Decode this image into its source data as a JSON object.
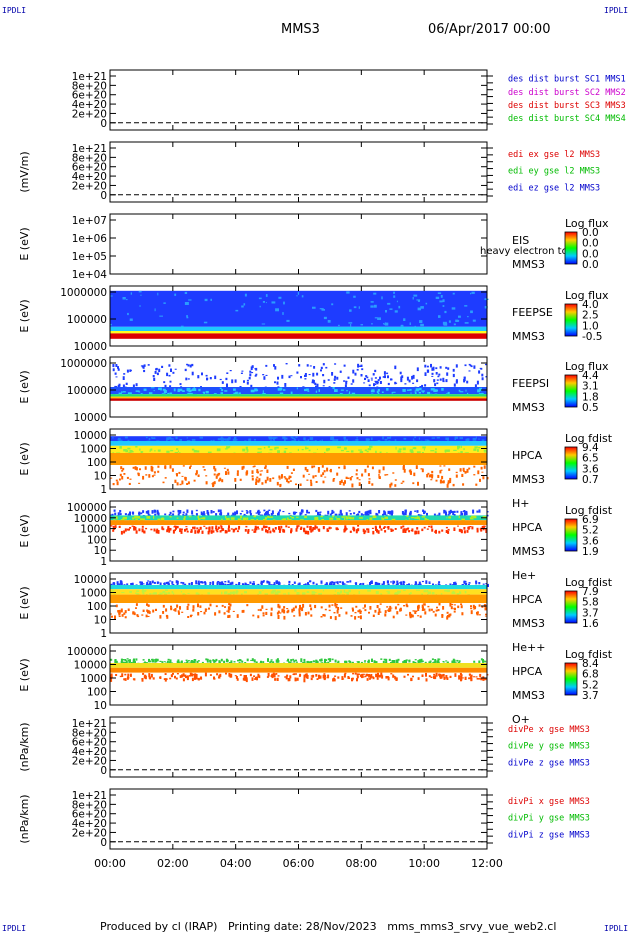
{
  "corner_label": "IPDLI",
  "header": {
    "title": "MMS3",
    "datetime": "06/Apr/2017 00:00"
  },
  "footer": {
    "produced_by": "Produced by cl (IRAP)",
    "printing_date": "Printing date: 28/Nov/2023",
    "filename": "mms_mms3_srvy_vue_web2.cl"
  },
  "chart_data": {
    "type": "heatmap",
    "x_ticks": [
      "00:00",
      "02:00",
      "04:00",
      "06:00",
      "08:00",
      "10:00",
      "12:00"
    ],
    "x_range_hours": [
      0,
      12
    ],
    "panels": [
      {
        "id": "des-dist",
        "kind": "line",
        "ylabel": "",
        "yticks": [
          "1e+21",
          "8e+20",
          "6e+20",
          "4e+20",
          "2e+20",
          "0"
        ],
        "dashed_zero": true,
        "legend": [
          {
            "text": "des dist burst SC1 MMS1",
            "color": "#0000cc"
          },
          {
            "text": "des dist burst SC2 MMS2",
            "color": "#cc00cc"
          },
          {
            "text": "des dist burst SC3 MMS3",
            "color": "#dd0000"
          },
          {
            "text": "des dist burst SC4 MMS4",
            "color": "#00bb00"
          }
        ]
      },
      {
        "id": "edi-e",
        "kind": "line",
        "ylabel": "(mV/m)",
        "yticks": [
          "1e+21",
          "8e+20",
          "6e+20",
          "4e+20",
          "2e+20",
          "0"
        ],
        "dashed_zero": true,
        "legend": [
          {
            "text": "edi ex gse l2 MMS3",
            "color": "#dd0000"
          },
          {
            "text": "edi ey gse l2 MMS3",
            "color": "#00bb00"
          },
          {
            "text": "edi ez gse l2 MMS3",
            "color": "#0000cc"
          }
        ]
      },
      {
        "id": "eis",
        "kind": "empty-spectrogram",
        "ylabel": "E (eV)",
        "yticks": [
          "1e+07",
          "1e+06",
          "1e+05",
          "1e+04"
        ],
        "instrument": [
          "EIS",
          "MMS3"
        ],
        "overlay_text": "heavy electron to",
        "colorbar": {
          "title": "Log flux",
          "labels": [
            "0.0",
            "0.0",
            "0.0",
            "0.0"
          ]
        }
      },
      {
        "id": "feeps-e",
        "kind": "spectrogram",
        "ylabel": "E (eV)",
        "yticks": [
          "1000000",
          "100000",
          "10000"
        ],
        "instrument": [
          "FEEPSE",
          "MMS3"
        ],
        "colorbar": {
          "title": "Log flux",
          "labels": [
            "4.0",
            "2.5",
            "1.0",
            "-0.5"
          ]
        },
        "bands": [
          {
            "from": 0.08,
            "to": 0.68,
            "color": "#1e3cff",
            "noise": "#2a9cff"
          },
          {
            "from": 0.68,
            "to": 0.75,
            "color": "#1ec8ff",
            "noise": null
          },
          {
            "from": 0.75,
            "to": 0.79,
            "color": "#ffff20",
            "noise": null
          },
          {
            "from": 0.79,
            "to": 0.88,
            "color": "#dd0000",
            "noise": null
          }
        ]
      },
      {
        "id": "feeps-i",
        "kind": "spectrogram",
        "ylabel": "E (eV)",
        "yticks": [
          "1000000",
          "100000",
          "10000"
        ],
        "instrument": [
          "FEEPSI",
          "MMS3"
        ],
        "colorbar": {
          "title": "Log flux",
          "labels": [
            "4.4",
            "3.1",
            "1.8",
            "0.5"
          ]
        },
        "bands": [
          {
            "from": 0.1,
            "to": 0.5,
            "color": "#1e3cff",
            "sparse": true
          },
          {
            "from": 0.5,
            "to": 0.62,
            "color": "#1e50ff",
            "noise": "#28c8ff"
          },
          {
            "from": 0.62,
            "to": 0.66,
            "color": "#20e070",
            "noise": null
          },
          {
            "from": 0.66,
            "to": 0.69,
            "color": "#ffcc00",
            "noise": null
          },
          {
            "from": 0.69,
            "to": 0.73,
            "color": "#cc0000",
            "noise": null
          }
        ]
      },
      {
        "id": "hpca-h",
        "kind": "spectrogram",
        "ylabel": "E (eV)",
        "yticks": [
          "10000",
          "1000",
          "100",
          "10",
          "1"
        ],
        "instrument": [
          "HPCA",
          "MMS3",
          "H+"
        ],
        "colorbar": {
          "title": "Log fdist",
          "labels": [
            "9.4",
            "6.5",
            "3.6",
            "0.7"
          ]
        },
        "bands": [
          {
            "from": 0.12,
            "to": 0.2,
            "color": "#1e3cff",
            "noise": "#1a78ff"
          },
          {
            "from": 0.2,
            "to": 0.28,
            "color": "#20c8ff",
            "noise": null
          },
          {
            "from": 0.28,
            "to": 0.4,
            "color": "#ffee20",
            "noise": "#90f040"
          },
          {
            "from": 0.4,
            "to": 0.6,
            "color": "#ff9a00",
            "noise": null
          },
          {
            "from": 0.6,
            "to": 0.92,
            "color": "#ff6400",
            "sparse": true
          }
        ]
      },
      {
        "id": "hpca-he",
        "kind": "spectrogram",
        "ylabel": "E (eV)",
        "yticks": [
          "100000",
          "10000",
          "1000",
          "100",
          "10",
          "1"
        ],
        "instrument": [
          "HPCA",
          "MMS3",
          "He+"
        ],
        "colorbar": {
          "title": "Log fdist",
          "labels": [
            "6.9",
            "5.2",
            "3.6",
            "1.9"
          ]
        },
        "bands": [
          {
            "from": 0.14,
            "to": 0.24,
            "color": "#1e3cff",
            "sparse": true
          },
          {
            "from": 0.24,
            "to": 0.32,
            "color": "#20d8b0",
            "noise": "#b0f020"
          },
          {
            "from": 0.32,
            "to": 0.4,
            "color": "#ff9000",
            "noise": null
          },
          {
            "from": 0.4,
            "to": 0.5,
            "color": "#ff3000",
            "sparse": true
          }
        ]
      },
      {
        "id": "hpca-he2",
        "kind": "spectrogram",
        "ylabel": "E (eV)",
        "yticks": [
          "10000",
          "1000",
          "100",
          "10",
          "1"
        ],
        "instrument": [
          "HPCA",
          "MMS3",
          "He++"
        ],
        "colorbar": {
          "title": "Log fdist",
          "labels": [
            "7.9",
            "5.8",
            "3.7",
            "1.6"
          ]
        },
        "bands": [
          {
            "from": 0.12,
            "to": 0.2,
            "color": "#1e3cff",
            "sparse": true
          },
          {
            "from": 0.2,
            "to": 0.27,
            "color": "#20d8e0",
            "noise": null
          },
          {
            "from": 0.27,
            "to": 0.36,
            "color": "#ffe020",
            "noise": "#c0f040"
          },
          {
            "from": 0.36,
            "to": 0.5,
            "color": "#ff9a00",
            "noise": null
          },
          {
            "from": 0.5,
            "to": 0.72,
            "color": "#ff6000",
            "sparse": true
          }
        ]
      },
      {
        "id": "hpca-o",
        "kind": "spectrogram",
        "ylabel": "E (eV)",
        "yticks": [
          "100000",
          "10000",
          "1000",
          "100",
          "10"
        ],
        "instrument": [
          "HPCA",
          "MMS3",
          "O+"
        ],
        "colorbar": {
          "title": "Log fdist",
          "labels": [
            "8.4",
            "6.8",
            "5.2",
            "3.7"
          ]
        },
        "bands": [
          {
            "from": 0.22,
            "to": 0.3,
            "color": "#30c840",
            "sparse": true
          },
          {
            "from": 0.3,
            "to": 0.38,
            "color": "#f0e020",
            "noise": null
          },
          {
            "from": 0.38,
            "to": 0.46,
            "color": "#ff8800",
            "noise": null
          },
          {
            "from": 0.46,
            "to": 0.56,
            "color": "#ff5000",
            "sparse": true
          }
        ]
      },
      {
        "id": "divpe",
        "kind": "line",
        "ylabel": "(nPa/km)",
        "yticks": [
          "1e+21",
          "8e+20",
          "6e+20",
          "4e+20",
          "2e+20",
          "0"
        ],
        "dashed_zero": true,
        "legend": [
          {
            "text": "divPe x gse MMS3",
            "color": "#dd0000"
          },
          {
            "text": "divPe y gse MMS3",
            "color": "#00bb00"
          },
          {
            "text": "divPe z gse MMS3",
            "color": "#0000cc"
          }
        ]
      },
      {
        "id": "divpi",
        "kind": "line",
        "ylabel": "(nPa/km)",
        "yticks": [
          "1e+21",
          "8e+20",
          "6e+20",
          "4e+20",
          "2e+20",
          "0"
        ],
        "dashed_zero": true,
        "legend": [
          {
            "text": "divPi x gse MMS3",
            "color": "#dd0000"
          },
          {
            "text": "divPi y gse MMS3",
            "color": "#00bb00"
          },
          {
            "text": "divPi z gse MMS3",
            "color": "#0000cc"
          }
        ]
      }
    ]
  }
}
